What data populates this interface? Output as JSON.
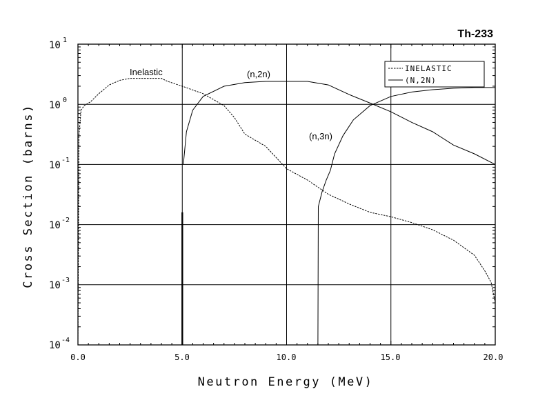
{
  "chart_data": {
    "type": "line",
    "title": "Th-233",
    "xlabel": "Neutron Energy (MeV)",
    "ylabel": "Cross Section (barns)",
    "xlim": [
      0,
      20
    ],
    "ylim": [
      0.0001,
      10
    ],
    "yscale": "log",
    "grid": true,
    "legend_position": "top-right",
    "x_ticks": [
      "0.0",
      "5.0",
      "10.0",
      "15.0",
      "20.0"
    ],
    "y_ticks": [
      {
        "base": "10",
        "exp": "1"
      },
      {
        "base": "10",
        "exp": "0"
      },
      {
        "base": "10",
        "exp": "-1"
      },
      {
        "base": "10",
        "exp": "-2"
      },
      {
        "base": "10",
        "exp": "-3"
      },
      {
        "base": "10",
        "exp": "-4"
      }
    ],
    "legend": [
      "INELASTIC",
      "(N,2N)"
    ],
    "annotations": [
      "Inelastic",
      "(n,2n)",
      "(n,3n)"
    ],
    "series": [
      {
        "name": "INELASTIC",
        "style": "dashed",
        "points": [
          [
            0.0,
            0.0001
          ],
          [
            0.05,
            0.3
          ],
          [
            0.15,
            0.8
          ],
          [
            0.3,
            0.95
          ],
          [
            0.6,
            1.1
          ],
          [
            1.0,
            1.5
          ],
          [
            1.5,
            2.1
          ],
          [
            2.0,
            2.5
          ],
          [
            2.5,
            2.7
          ],
          [
            3.0,
            2.7
          ],
          [
            4.0,
            2.7
          ],
          [
            4.3,
            2.4
          ],
          [
            5.0,
            2.0
          ],
          [
            6.0,
            1.5
          ],
          [
            7.0,
            0.95
          ],
          [
            7.5,
            0.6
          ],
          [
            8.0,
            0.32
          ],
          [
            9.0,
            0.2
          ],
          [
            10.0,
            0.085
          ],
          [
            11.0,
            0.055
          ],
          [
            12.0,
            0.032
          ],
          [
            13.0,
            0.022
          ],
          [
            14.0,
            0.016
          ],
          [
            15.0,
            0.0135
          ],
          [
            16.0,
            0.0108
          ],
          [
            17.0,
            0.0082
          ],
          [
            18.0,
            0.0055
          ],
          [
            19.0,
            0.0031
          ],
          [
            19.5,
            0.0017
          ],
          [
            19.8,
            0.0011
          ],
          [
            20.0,
            0.0005
          ]
        ]
      },
      {
        "name": "(N,2N)",
        "style": "solid",
        "points": [
          [
            5.05,
            0.1
          ],
          [
            5.2,
            0.35
          ],
          [
            5.5,
            0.8
          ],
          [
            6.0,
            1.35
          ],
          [
            7.0,
            2.0
          ],
          [
            8.0,
            2.3
          ],
          [
            9.0,
            2.4
          ],
          [
            10.0,
            2.4
          ],
          [
            11.0,
            2.4
          ],
          [
            12.0,
            2.1
          ],
          [
            13.0,
            1.45
          ],
          [
            14.0,
            1.05
          ],
          [
            15.0,
            0.75
          ],
          [
            16.0,
            0.5
          ],
          [
            17.0,
            0.35
          ],
          [
            18.0,
            0.21
          ],
          [
            19.0,
            0.15
          ],
          [
            20.0,
            0.1
          ]
        ]
      },
      {
        "name": "(n,3n)",
        "style": "solid",
        "points": [
          [
            11.5,
            0.0001
          ],
          [
            11.52,
            0.02
          ],
          [
            11.7,
            0.035
          ],
          [
            11.9,
            0.055
          ],
          [
            12.1,
            0.08
          ],
          [
            12.3,
            0.15
          ],
          [
            12.7,
            0.3
          ],
          [
            13.2,
            0.55
          ],
          [
            14.0,
            0.95
          ],
          [
            15.0,
            1.35
          ],
          [
            16.0,
            1.6
          ],
          [
            17.0,
            1.75
          ],
          [
            18.0,
            1.85
          ],
          [
            19.0,
            1.9
          ],
          [
            20.0,
            1.9
          ]
        ]
      },
      {
        "name": "threshold marker",
        "style": "solid-thick",
        "points": [
          [
            5.0,
            0.0001
          ],
          [
            5.0,
            0.016
          ]
        ]
      }
    ]
  }
}
